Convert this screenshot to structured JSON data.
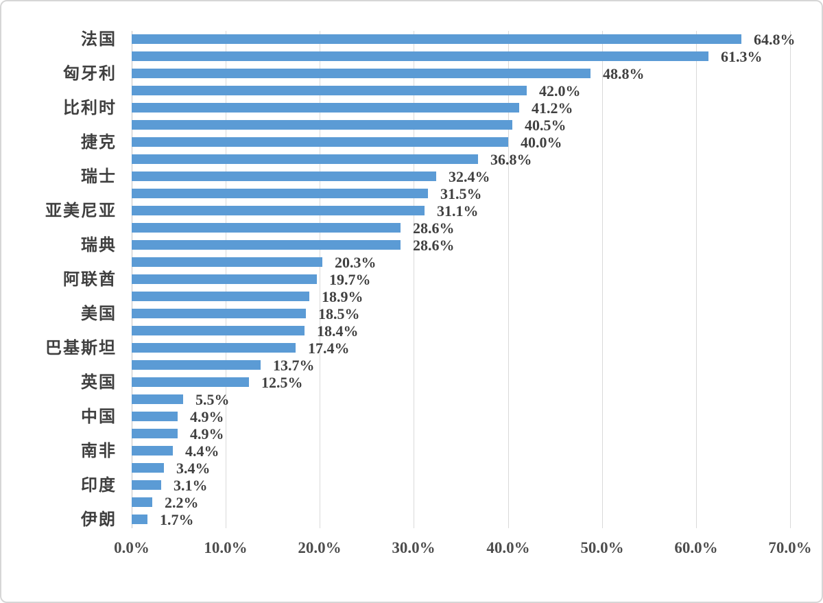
{
  "chart_data": {
    "type": "bar",
    "orientation": "horizontal",
    "title": "",
    "xlabel": "",
    "ylabel": "",
    "xlim": [
      0,
      70
    ],
    "grid": true,
    "legend_position": "none",
    "bar_color": "#5b9bd5",
    "gridline_color": "#d9d9d9",
    "axis_line_color": "#c3c3c3",
    "value_label_color": "#404040",
    "category_label_color": "#3f3f3f",
    "x_ticks": [
      "0.0%",
      "10.0%",
      "20.0%",
      "30.0%",
      "40.0%",
      "50.0%",
      "60.0%",
      "70.0%"
    ],
    "bars": [
      {
        "label": "法国",
        "value": 64.8,
        "display": "64.8%"
      },
      {
        "label": "",
        "value": 61.3,
        "display": "61.3%"
      },
      {
        "label": "匈牙利",
        "value": 48.8,
        "display": "48.8%"
      },
      {
        "label": "",
        "value": 42.0,
        "display": "42.0%"
      },
      {
        "label": "比利时",
        "value": 41.2,
        "display": "41.2%"
      },
      {
        "label": "",
        "value": 40.5,
        "display": "40.5%"
      },
      {
        "label": "捷克",
        "value": 40.0,
        "display": "40.0%"
      },
      {
        "label": "",
        "value": 36.8,
        "display": "36.8%"
      },
      {
        "label": "瑞士",
        "value": 32.4,
        "display": "32.4%"
      },
      {
        "label": "",
        "value": 31.5,
        "display": "31.5%"
      },
      {
        "label": "亚美尼亚",
        "value": 31.1,
        "display": "31.1%"
      },
      {
        "label": "",
        "value": 28.6,
        "display": "28.6%"
      },
      {
        "label": "瑞典",
        "value": 28.6,
        "display": "28.6%"
      },
      {
        "label": "",
        "value": 20.3,
        "display": "20.3%"
      },
      {
        "label": "阿联酋",
        "value": 19.7,
        "display": "19.7%"
      },
      {
        "label": "",
        "value": 18.9,
        "display": "18.9%"
      },
      {
        "label": "美国",
        "value": 18.5,
        "display": "18.5%"
      },
      {
        "label": "",
        "value": 18.4,
        "display": "18.4%"
      },
      {
        "label": "巴基斯坦",
        "value": 17.4,
        "display": "17.4%"
      },
      {
        "label": "",
        "value": 13.7,
        "display": "13.7%"
      },
      {
        "label": "英国",
        "value": 12.5,
        "display": "12.5%"
      },
      {
        "label": "",
        "value": 5.5,
        "display": "5.5%"
      },
      {
        "label": "中国",
        "value": 4.9,
        "display": "4.9%"
      },
      {
        "label": "",
        "value": 4.9,
        "display": "4.9%"
      },
      {
        "label": "南非",
        "value": 4.4,
        "display": "4.4%"
      },
      {
        "label": "",
        "value": 3.4,
        "display": "3.4%"
      },
      {
        "label": "印度",
        "value": 3.1,
        "display": "3.1%"
      },
      {
        "label": "",
        "value": 2.2,
        "display": "2.2%"
      },
      {
        "label": "伊朗",
        "value": 1.7,
        "display": "1.7%"
      }
    ]
  }
}
